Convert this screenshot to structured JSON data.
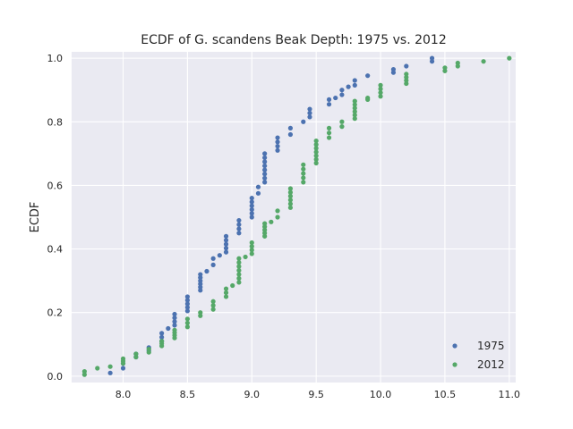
{
  "chart_data": {
    "type": "scatter",
    "title": "ECDF of G. scandens Beak Depth: 1975 vs. 2012",
    "xlabel": "",
    "ylabel": "ECDF",
    "xlim": [
      7.6,
      11.05
    ],
    "ylim": [
      -0.02,
      1.02
    ],
    "xticks": [
      8.0,
      8.5,
      9.0,
      9.5,
      10.0,
      10.5,
      11.0
    ],
    "xtick_labels": [
      "8.0",
      "8.5",
      "9.0",
      "9.5",
      "10.0",
      "10.5",
      "11.0"
    ],
    "yticks": [
      0.0,
      0.2,
      0.4,
      0.6,
      0.8,
      1.0
    ],
    "ytick_labels": [
      "0.0",
      "0.2",
      "0.4",
      "0.6",
      "0.8",
      "1.0"
    ],
    "grid": true,
    "legend_position": "lower-right",
    "series": [
      {
        "name": "1975",
        "color": "#4c72b0",
        "groups": [
          {
            "x": 7.9,
            "y0": 0.01,
            "y1": 0.01,
            "n": 1
          },
          {
            "x": 8.0,
            "y0": 0.025,
            "y1": 0.04,
            "n": 2
          },
          {
            "x": 8.1,
            "y0": 0.06,
            "y1": 0.07,
            "n": 2
          },
          {
            "x": 8.2,
            "y0": 0.08,
            "y1": 0.09,
            "n": 2
          },
          {
            "x": 8.3,
            "y0": 0.11,
            "y1": 0.135,
            "n": 3
          },
          {
            "x": 8.35,
            "y0": 0.15,
            "y1": 0.15,
            "n": 1
          },
          {
            "x": 8.4,
            "y0": 0.16,
            "y1": 0.195,
            "n": 4
          },
          {
            "x": 8.5,
            "y0": 0.205,
            "y1": 0.25,
            "n": 5
          },
          {
            "x": 8.6,
            "y0": 0.27,
            "y1": 0.32,
            "n": 6
          },
          {
            "x": 8.65,
            "y0": 0.33,
            "y1": 0.33,
            "n": 1
          },
          {
            "x": 8.7,
            "y0": 0.35,
            "y1": 0.37,
            "n": 2
          },
          {
            "x": 8.75,
            "y0": 0.38,
            "y1": 0.38,
            "n": 1
          },
          {
            "x": 8.8,
            "y0": 0.39,
            "y1": 0.44,
            "n": 5
          },
          {
            "x": 8.9,
            "y0": 0.45,
            "y1": 0.49,
            "n": 4
          },
          {
            "x": 9.0,
            "y0": 0.5,
            "y1": 0.56,
            "n": 6
          },
          {
            "x": 9.05,
            "y0": 0.575,
            "y1": 0.595,
            "n": 2
          },
          {
            "x": 9.1,
            "y0": 0.61,
            "y1": 0.7,
            "n": 8
          },
          {
            "x": 9.2,
            "y0": 0.71,
            "y1": 0.75,
            "n": 4
          },
          {
            "x": 9.3,
            "y0": 0.76,
            "y1": 0.78,
            "n": 2
          },
          {
            "x": 9.4,
            "y0": 0.8,
            "y1": 0.8,
            "n": 1
          },
          {
            "x": 9.45,
            "y0": 0.815,
            "y1": 0.84,
            "n": 3
          },
          {
            "x": 9.6,
            "y0": 0.855,
            "y1": 0.87,
            "n": 2
          },
          {
            "x": 9.65,
            "y0": 0.875,
            "y1": 0.875,
            "n": 1
          },
          {
            "x": 9.7,
            "y0": 0.885,
            "y1": 0.9,
            "n": 2
          },
          {
            "x": 9.75,
            "y0": 0.91,
            "y1": 0.91,
            "n": 1
          },
          {
            "x": 9.8,
            "y0": 0.915,
            "y1": 0.93,
            "n": 2
          },
          {
            "x": 9.9,
            "y0": 0.945,
            "y1": 0.945,
            "n": 1
          },
          {
            "x": 10.1,
            "y0": 0.955,
            "y1": 0.965,
            "n": 2
          },
          {
            "x": 10.2,
            "y0": 0.975,
            "y1": 0.975,
            "n": 1
          },
          {
            "x": 10.4,
            "y0": 0.99,
            "y1": 1.0,
            "n": 2
          }
        ]
      },
      {
        "name": "2012",
        "color": "#55a868",
        "groups": [
          {
            "x": 7.7,
            "y0": 0.005,
            "y1": 0.015,
            "n": 2
          },
          {
            "x": 7.8,
            "y0": 0.025,
            "y1": 0.025,
            "n": 1
          },
          {
            "x": 7.9,
            "y0": 0.03,
            "y1": 0.03,
            "n": 1
          },
          {
            "x": 8.0,
            "y0": 0.04,
            "y1": 0.055,
            "n": 3
          },
          {
            "x": 8.1,
            "y0": 0.06,
            "y1": 0.07,
            "n": 2
          },
          {
            "x": 8.2,
            "y0": 0.075,
            "y1": 0.085,
            "n": 2
          },
          {
            "x": 8.3,
            "y0": 0.095,
            "y1": 0.11,
            "n": 3
          },
          {
            "x": 8.4,
            "y0": 0.12,
            "y1": 0.145,
            "n": 4
          },
          {
            "x": 8.5,
            "y0": 0.155,
            "y1": 0.18,
            "n": 3
          },
          {
            "x": 8.6,
            "y0": 0.19,
            "y1": 0.2,
            "n": 2
          },
          {
            "x": 8.7,
            "y0": 0.21,
            "y1": 0.235,
            "n": 3
          },
          {
            "x": 8.8,
            "y0": 0.25,
            "y1": 0.275,
            "n": 3
          },
          {
            "x": 8.85,
            "y0": 0.285,
            "y1": 0.285,
            "n": 1
          },
          {
            "x": 8.9,
            "y0": 0.295,
            "y1": 0.37,
            "n": 7
          },
          {
            "x": 8.95,
            "y0": 0.375,
            "y1": 0.375,
            "n": 1
          },
          {
            "x": 9.0,
            "y0": 0.385,
            "y1": 0.42,
            "n": 4
          },
          {
            "x": 9.1,
            "y0": 0.44,
            "y1": 0.48,
            "n": 5
          },
          {
            "x": 9.15,
            "y0": 0.485,
            "y1": 0.485,
            "n": 1
          },
          {
            "x": 9.2,
            "y0": 0.5,
            "y1": 0.52,
            "n": 2
          },
          {
            "x": 9.3,
            "y0": 0.53,
            "y1": 0.59,
            "n": 6
          },
          {
            "x": 9.4,
            "y0": 0.61,
            "y1": 0.665,
            "n": 5
          },
          {
            "x": 9.5,
            "y0": 0.67,
            "y1": 0.74,
            "n": 7
          },
          {
            "x": 9.6,
            "y0": 0.75,
            "y1": 0.78,
            "n": 3
          },
          {
            "x": 9.7,
            "y0": 0.785,
            "y1": 0.8,
            "n": 2
          },
          {
            "x": 9.8,
            "y0": 0.81,
            "y1": 0.865,
            "n": 6
          },
          {
            "x": 9.9,
            "y0": 0.87,
            "y1": 0.875,
            "n": 2
          },
          {
            "x": 10.0,
            "y0": 0.88,
            "y1": 0.915,
            "n": 4
          },
          {
            "x": 10.2,
            "y0": 0.92,
            "y1": 0.95,
            "n": 4
          },
          {
            "x": 10.5,
            "y0": 0.96,
            "y1": 0.97,
            "n": 2
          },
          {
            "x": 10.6,
            "y0": 0.975,
            "y1": 0.985,
            "n": 2
          },
          {
            "x": 10.8,
            "y0": 0.99,
            "y1": 0.99,
            "n": 1
          },
          {
            "x": 11.0,
            "y0": 1.0,
            "y1": 1.0,
            "n": 1
          }
        ]
      }
    ]
  }
}
